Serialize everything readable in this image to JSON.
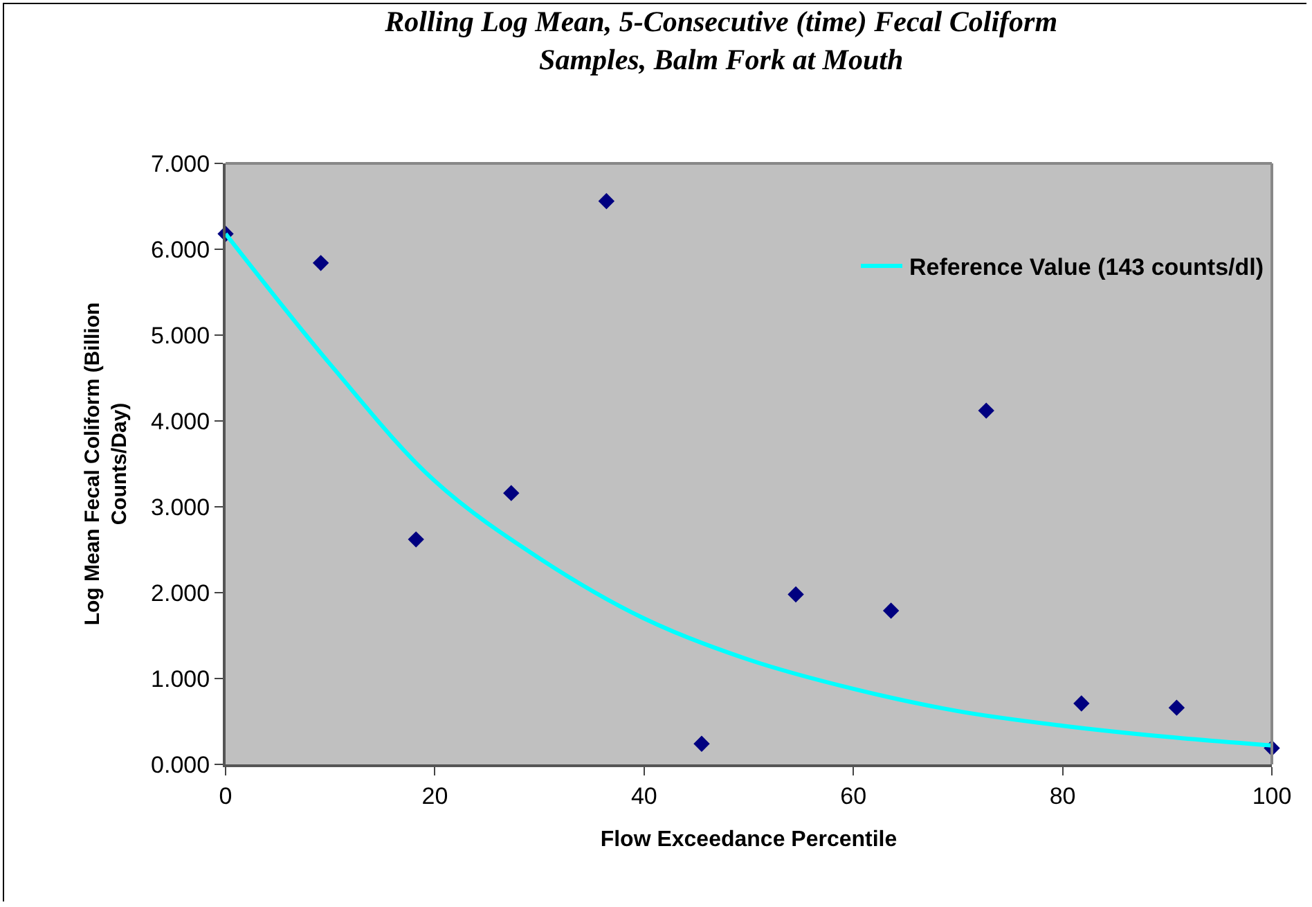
{
  "chart_data": {
    "type": "scatter",
    "title": "Rolling Log Mean, 5-Consecutive (time) Fecal Coliform\nSamples, Balm Fork at Mouth",
    "xlabel": "Flow Exceedance Percentile",
    "ylabel": "Log Mean Fecal Coliform (Billion\nCounts/Day)",
    "xlim": [
      0,
      100
    ],
    "xticks": [
      0,
      20,
      40,
      60,
      80,
      100
    ],
    "ylim": [
      0,
      7
    ],
    "yticks": [
      {
        "value": 0,
        "label": "0.000"
      },
      {
        "value": 1,
        "label": "1.000"
      },
      {
        "value": 2,
        "label": "2.000"
      },
      {
        "value": 3,
        "label": "3.000"
      },
      {
        "value": 4,
        "label": "4.000"
      },
      {
        "value": 5,
        "label": "5.000"
      },
      {
        "value": 6,
        "label": "6.000"
      },
      {
        "value": 7,
        "label": "7.000"
      }
    ],
    "grid": false,
    "legend": "top right",
    "series": [
      {
        "marker": "diamond",
        "color": "#000080",
        "x": [
          0,
          9.1,
          18.2,
          27.3,
          36.4,
          45.5,
          54.5,
          63.6,
          72.7,
          81.8,
          90.9,
          100
        ],
        "values": [
          6.18,
          5.84,
          2.62,
          3.16,
          6.56,
          0.24,
          1.98,
          1.79,
          4.12,
          0.71,
          0.66,
          0.19
        ]
      },
      {
        "type": "line",
        "marker": "none",
        "name": "Reference Value (143 counts/dl)",
        "color": "#00ffff",
        "x": [
          0,
          10,
          20,
          30,
          40,
          50,
          60,
          70,
          80,
          90,
          100
        ],
        "values": [
          6.18,
          4.66,
          3.3,
          2.4,
          1.7,
          1.22,
          0.88,
          0.62,
          0.45,
          0.32,
          0.22
        ]
      }
    ]
  }
}
